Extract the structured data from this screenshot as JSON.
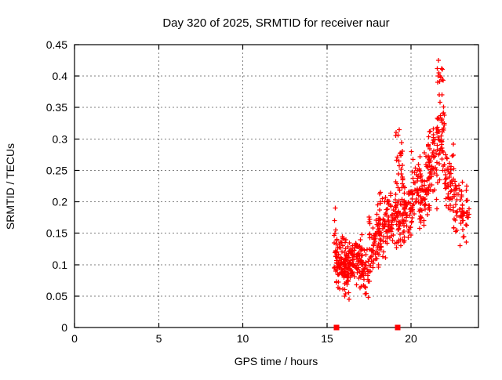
{
  "chart_data": {
    "type": "scatter",
    "title": "Day 320 of 2025, SRMTID for receiver naur",
    "xlabel": "GPS time / hours",
    "ylabel": "SRMTID / TECUs",
    "xlim": [
      0,
      24
    ],
    "ylim": [
      0,
      0.45
    ],
    "grid": "dashed-gray",
    "legend": "none",
    "marker": "plus",
    "marker_color": "#ff0000",
    "grid_color": "#7f7f7f",
    "axis_color": "#000000",
    "background_color": "#ffffff",
    "seed": 42,
    "xticks": {
      "values": [
        0,
        5,
        10,
        15,
        20
      ],
      "labels": [
        "0",
        "5",
        "10",
        "15",
        "20"
      ]
    },
    "yticks": {
      "values": [
        0,
        0.05,
        0.1,
        0.15,
        0.2,
        0.25,
        0.3,
        0.35,
        0.4,
        0.45
      ],
      "labels": [
        "0",
        "0.05",
        "0.1",
        "0.15",
        "0.2",
        "0.25",
        "0.3",
        "0.35",
        "0.4",
        "0.45"
      ]
    },
    "clusters": [
      {
        "x": [
          15.42,
          15.62
        ],
        "y": [
          0.09,
          0.185
        ],
        "n": 16,
        "spread": "uniform"
      },
      {
        "x": [
          15.5,
          16.1
        ],
        "y": [
          0.055,
          0.15
        ],
        "n": 70,
        "spread": "tri"
      },
      {
        "x": [
          16.0,
          16.55
        ],
        "y": [
          0.045,
          0.145
        ],
        "n": 75,
        "spread": "tri"
      },
      {
        "x": [
          16.5,
          17.1
        ],
        "y": [
          0.06,
          0.15
        ],
        "n": 60,
        "spread": "tri"
      },
      {
        "x": [
          17.0,
          17.6
        ],
        "y": [
          0.045,
          0.135
        ],
        "n": 40,
        "spread": "tri"
      },
      {
        "x": [
          17.5,
          18.1
        ],
        "y": [
          0.075,
          0.19
        ],
        "n": 55,
        "spread": "tri"
      },
      {
        "x": [
          18.0,
          18.6
        ],
        "y": [
          0.09,
          0.22
        ],
        "n": 55,
        "spread": "tri"
      },
      {
        "x": [
          18.55,
          19.1
        ],
        "y": [
          0.12,
          0.22
        ],
        "n": 45,
        "spread": "tri"
      },
      {
        "x": [
          19.05,
          19.5
        ],
        "y": [
          0.17,
          0.315
        ],
        "n": 40,
        "spread": "uniform"
      },
      {
        "x": [
          19.1,
          19.6
        ],
        "y": [
          0.12,
          0.2
        ],
        "n": 30,
        "spread": "tri"
      },
      {
        "x": [
          19.5,
          20.1
        ],
        "y": [
          0.13,
          0.25
        ],
        "n": 55,
        "spread": "tri"
      },
      {
        "x": [
          20.0,
          20.6
        ],
        "y": [
          0.15,
          0.3
        ],
        "n": 45,
        "spread": "tri"
      },
      {
        "x": [
          20.5,
          21.1
        ],
        "y": [
          0.15,
          0.28
        ],
        "n": 55,
        "spread": "tri"
      },
      {
        "x": [
          21.0,
          21.6
        ],
        "y": [
          0.18,
          0.33
        ],
        "n": 55,
        "spread": "tri"
      },
      {
        "x": [
          21.5,
          22.0
        ],
        "y": [
          0.22,
          0.36
        ],
        "n": 45,
        "spread": "tri"
      },
      {
        "x": [
          21.55,
          21.95
        ],
        "y": [
          0.33,
          0.425
        ],
        "n": 14,
        "spread": "uniform"
      },
      {
        "x": [
          22.0,
          22.6
        ],
        "y": [
          0.17,
          0.3
        ],
        "n": 45,
        "spread": "tri"
      },
      {
        "x": [
          22.5,
          23.1
        ],
        "y": [
          0.13,
          0.25
        ],
        "n": 40,
        "spread": "tri"
      },
      {
        "x": [
          23.0,
          23.45
        ],
        "y": [
          0.13,
          0.23
        ],
        "n": 25,
        "spread": "tri"
      }
    ],
    "extra_points": [
      [
        15.5,
        0.19
      ],
      [
        16.3,
        0.045
      ],
      [
        17.45,
        0.048
      ],
      [
        19.3,
        0.315
      ],
      [
        21.63,
        0.425
      ],
      [
        21.6,
        0.4
      ],
      [
        21.72,
        0.4
      ],
      [
        21.57,
        0.39
      ],
      [
        21.68,
        0.37
      ],
      [
        23.3,
        0.225
      ],
      [
        23.35,
        0.175
      ],
      [
        22.9,
        0.13
      ]
    ],
    "baseline_squares": [
      [
        15.57,
        0
      ],
      [
        19.2,
        0
      ]
    ]
  }
}
